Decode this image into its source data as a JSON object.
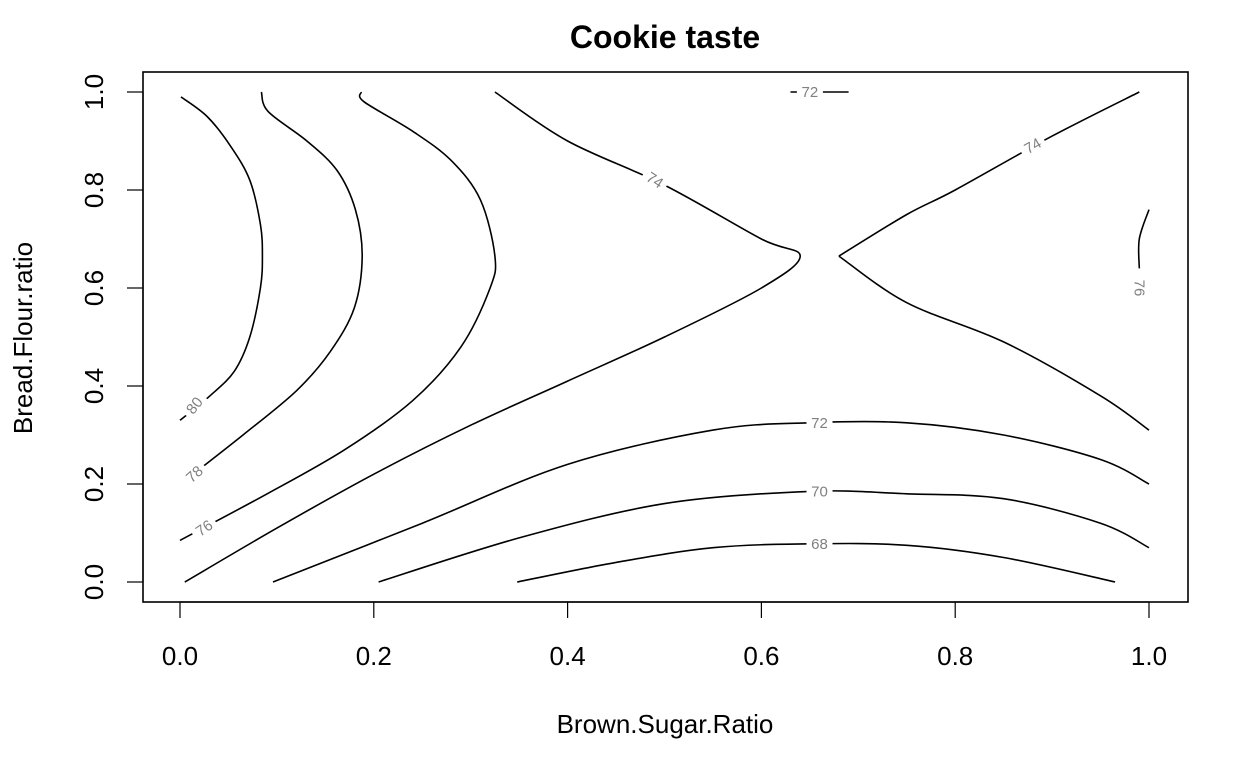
{
  "chart_data": {
    "type": "contour",
    "title": "Cookie taste",
    "xlabel": "Brown.Sugar.Ratio",
    "ylabel": "Bread.Flour.ratio",
    "xlim": [
      -0.04,
      1.04
    ],
    "ylim": [
      -0.04,
      1.04
    ],
    "xticks": [
      "0.0",
      "0.2",
      "0.4",
      "0.6",
      "0.8",
      "1.0"
    ],
    "yticks": [
      "0.0",
      "0.2",
      "0.4",
      "0.6",
      "0.8",
      "1.0"
    ],
    "contours": [
      {
        "level": "80",
        "points": [
          [
            0.0,
            0.33
          ],
          [
            0.031,
            0.38
          ],
          [
            0.056,
            0.43
          ],
          [
            0.072,
            0.5
          ],
          [
            0.083,
            0.6
          ],
          [
            0.085,
            0.665
          ],
          [
            0.083,
            0.73
          ],
          [
            0.072,
            0.82
          ],
          [
            0.052,
            0.89
          ],
          [
            0.028,
            0.95
          ],
          [
            0.001,
            0.99
          ]
        ]
      },
      {
        "level": "78",
        "points": [
          [
            0.007,
            0.21
          ],
          [
            0.065,
            0.3
          ],
          [
            0.12,
            0.39
          ],
          [
            0.155,
            0.47
          ],
          [
            0.18,
            0.56
          ],
          [
            0.188,
            0.665
          ],
          [
            0.181,
            0.76
          ],
          [
            0.162,
            0.84
          ],
          [
            0.131,
            0.9
          ],
          [
            0.091,
            0.96
          ],
          [
            0.084,
            1.0
          ]
        ]
      },
      {
        "level": "76",
        "points": [
          [
            0.0,
            0.085
          ],
          [
            0.09,
            0.18
          ],
          [
            0.17,
            0.27
          ],
          [
            0.24,
            0.37
          ],
          [
            0.29,
            0.48
          ],
          [
            0.32,
            0.6
          ],
          [
            0.325,
            0.665
          ],
          [
            0.31,
            0.78
          ],
          [
            0.28,
            0.86
          ],
          [
            0.24,
            0.92
          ],
          [
            0.19,
            0.98
          ],
          [
            0.187,
            1.0
          ]
        ]
      },
      {
        "level": "74",
        "points": [
          [
            0.005,
            0.0
          ],
          [
            0.1,
            0.11
          ],
          [
            0.2,
            0.22
          ],
          [
            0.3,
            0.32
          ],
          [
            0.4,
            0.41
          ],
          [
            0.5,
            0.5
          ],
          [
            0.6,
            0.6
          ],
          [
            0.64,
            0.665
          ],
          [
            0.6,
            0.7
          ],
          [
            0.5,
            0.81
          ],
          [
            0.4,
            0.9
          ],
          [
            0.325,
            1.0
          ]
        ]
      },
      {
        "level": "74",
        "points": [
          [
            0.68,
            0.665
          ],
          [
            0.75,
            0.75
          ],
          [
            0.8,
            0.8
          ],
          [
            0.9,
            0.91
          ],
          [
            0.99,
            1.0
          ]
        ]
      },
      {
        "level": "74",
        "points": [
          [
            0.68,
            0.665
          ],
          [
            0.75,
            0.57
          ],
          [
            0.85,
            0.49
          ],
          [
            0.95,
            0.38
          ],
          [
            1.0,
            0.31
          ]
        ]
      },
      {
        "level": "76",
        "points": [
          [
            0.99,
            0.64
          ],
          [
            0.99,
            0.7
          ],
          [
            1.0,
            0.76
          ]
        ]
      },
      {
        "level": "72",
        "points": [
          [
            0.63,
            1.0
          ],
          [
            0.69,
            1.0
          ]
        ]
      },
      {
        "level": "72",
        "points": [
          [
            0.096,
            0.0
          ],
          [
            0.25,
            0.12
          ],
          [
            0.4,
            0.24
          ],
          [
            0.55,
            0.31
          ],
          [
            0.65,
            0.325
          ],
          [
            0.75,
            0.325
          ],
          [
            0.85,
            0.3
          ],
          [
            0.95,
            0.25
          ],
          [
            1.0,
            0.2
          ]
        ]
      },
      {
        "level": "70",
        "points": [
          [
            0.205,
            0.0
          ],
          [
            0.35,
            0.09
          ],
          [
            0.5,
            0.16
          ],
          [
            0.65,
            0.185
          ],
          [
            0.75,
            0.18
          ],
          [
            0.85,
            0.17
          ],
          [
            0.95,
            0.12
          ],
          [
            1.0,
            0.07
          ]
        ]
      },
      {
        "level": "68",
        "points": [
          [
            0.348,
            0.0
          ],
          [
            0.45,
            0.04
          ],
          [
            0.55,
            0.07
          ],
          [
            0.65,
            0.078
          ],
          [
            0.75,
            0.075
          ],
          [
            0.85,
            0.05
          ],
          [
            0.965,
            0.0
          ]
        ]
      }
    ],
    "contour_labels": [
      {
        "text": "80",
        "x": 0.015,
        "y": 0.36,
        "angle": -52
      },
      {
        "text": "78",
        "x": 0.015,
        "y": 0.22,
        "angle": -42
      },
      {
        "text": "76",
        "x": 0.025,
        "y": 0.11,
        "angle": -35
      },
      {
        "text": "74",
        "x": 0.49,
        "y": 0.82,
        "angle": 33
      },
      {
        "text": "72",
        "x": 0.65,
        "y": 1.0,
        "angle": 0
      },
      {
        "text": "74",
        "x": 0.88,
        "y": 0.89,
        "angle": -30
      },
      {
        "text": "76",
        "x": 0.99,
        "y": 0.6,
        "angle": 90
      },
      {
        "text": "72",
        "x": 0.66,
        "y": 0.325,
        "angle": 0
      },
      {
        "text": "70",
        "x": 0.66,
        "y": 0.185,
        "angle": 0
      },
      {
        "text": "68",
        "x": 0.66,
        "y": 0.078,
        "angle": 0
      }
    ]
  }
}
